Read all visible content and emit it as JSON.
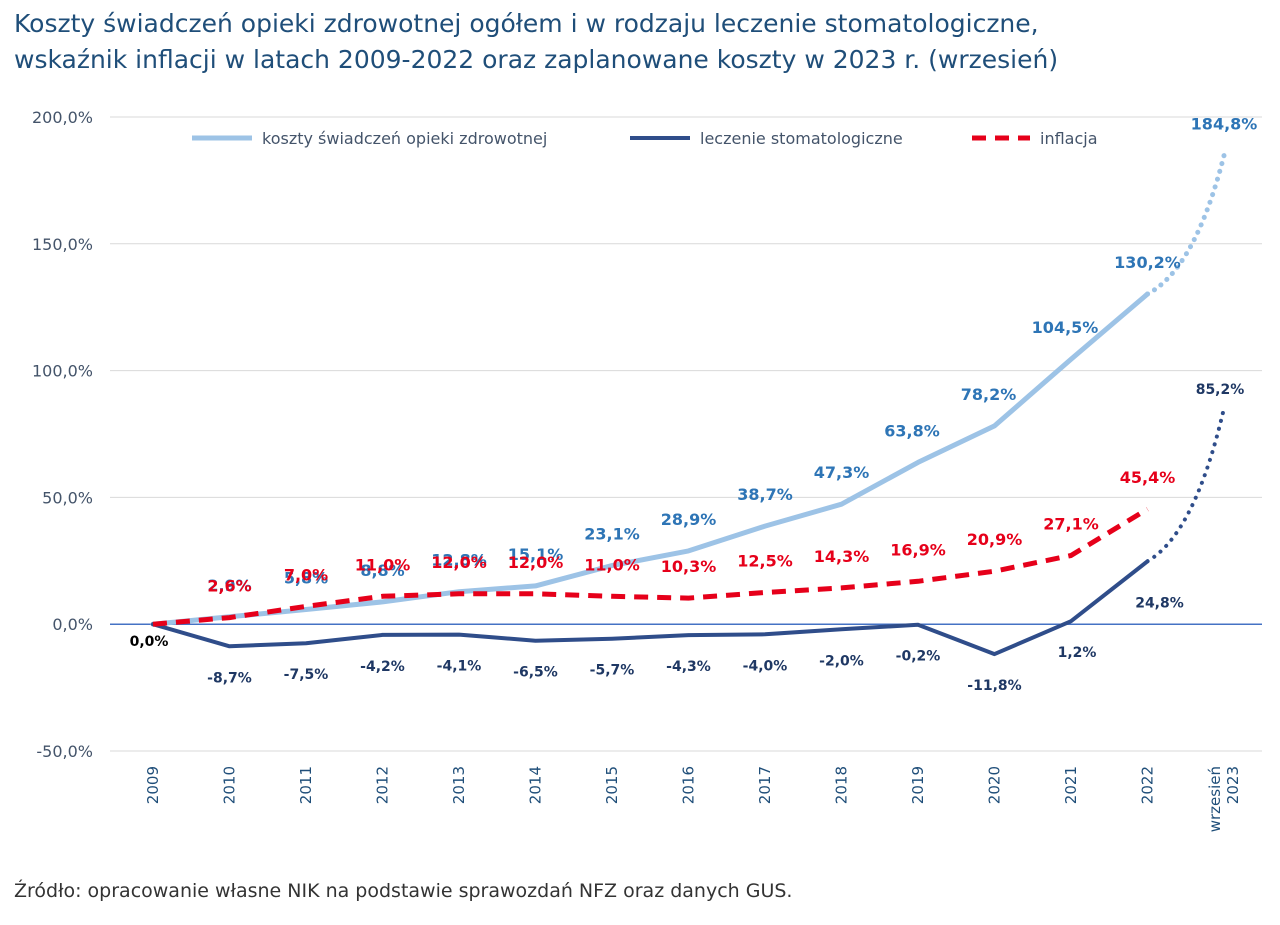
{
  "title_lines": [
    "Koszty świadczeń opieki zdrowotnej ogółem i w rodzaju leczenie stomatologiczne,",
    "wskaźnik inflacji w latach 2009-2022 oraz zaplanowane koszty w 2023 r. (wrzesień)"
  ],
  "source": "Źródło: opracowanie własne NIK na podstawie sprawozdań NFZ oraz danych GUS.",
  "colors": {
    "total": "#9dc3e6",
    "total_label": "#2e75b6",
    "dental": "#2f4d8a",
    "dental_label": "#1f3864",
    "inflation": "#e6001a",
    "inflation_label": "#e6001a",
    "zero_line": "#4472c4",
    "grid": "#d9d9d9"
  },
  "chart_data": {
    "type": "line",
    "categories": [
      "2009",
      "2010",
      "2011",
      "2012",
      "2013",
      "2014",
      "2015",
      "2016",
      "2017",
      "2018",
      "2019",
      "2020",
      "2021",
      "2022",
      "wrzesień 2023"
    ],
    "ylim": [
      -50,
      200
    ],
    "yticks": [
      200,
      150,
      100,
      50,
      0,
      -50
    ],
    "ytick_labels": [
      "200,0%",
      "150,0%",
      "100,0%",
      "50,0%",
      "0,0%",
      "-50,0%"
    ],
    "grid": true,
    "legend_position": "top",
    "series": [
      {
        "name": "koszty świadczeń opieki zdrowotnej",
        "style": "solid-light",
        "projection_style": "dotted",
        "values": [
          0,
          2.9,
          5.8,
          8.8,
          12.8,
          15.1,
          23.1,
          28.9,
          38.7,
          47.3,
          63.8,
          78.2,
          104.5,
          130.2,
          184.8
        ],
        "labels": [
          "",
          "2,9%",
          "5,8%",
          "8,8%",
          "12,8%",
          "15,1%",
          "23,1%",
          "28,9%",
          "38,7%",
          "47,3%",
          "63,8%",
          "78,2%",
          "104,5%",
          "130,2%",
          "184,8%"
        ]
      },
      {
        "name": "leczenie stomatologiczne",
        "style": "solid-dark",
        "projection_style": "dotted",
        "values": [
          0,
          -8.7,
          -7.5,
          -4.2,
          -4.1,
          -6.5,
          -5.7,
          -4.3,
          -4.0,
          -2.0,
          -0.2,
          -11.8,
          1.2,
          24.8,
          85.2
        ],
        "labels": [
          "0,0%",
          "-8,7%",
          "-7,5%",
          "-4,2%",
          "-4,1%",
          "-6,5%",
          "-5,7%",
          "-4,3%",
          "-4,0%",
          "-2,0%",
          "-0,2%",
          "-11,8%",
          "1,2%",
          "24,8%",
          "85,2%"
        ]
      },
      {
        "name": "inflacja",
        "style": "dashed",
        "values": [
          0,
          2.6,
          7.0,
          11.0,
          12.0,
          12.0,
          11.0,
          10.3,
          12.5,
          14.3,
          16.9,
          20.9,
          27.1,
          45.4,
          null
        ],
        "labels": [
          "",
          "2,6%",
          "7,0%",
          "11,0%",
          "12,0%",
          "12,0%",
          "11,0%",
          "10,3%",
          "12,5%",
          "14,3%",
          "16,9%",
          "20,9%",
          "27,1%",
          "45,4%",
          ""
        ]
      }
    ]
  }
}
